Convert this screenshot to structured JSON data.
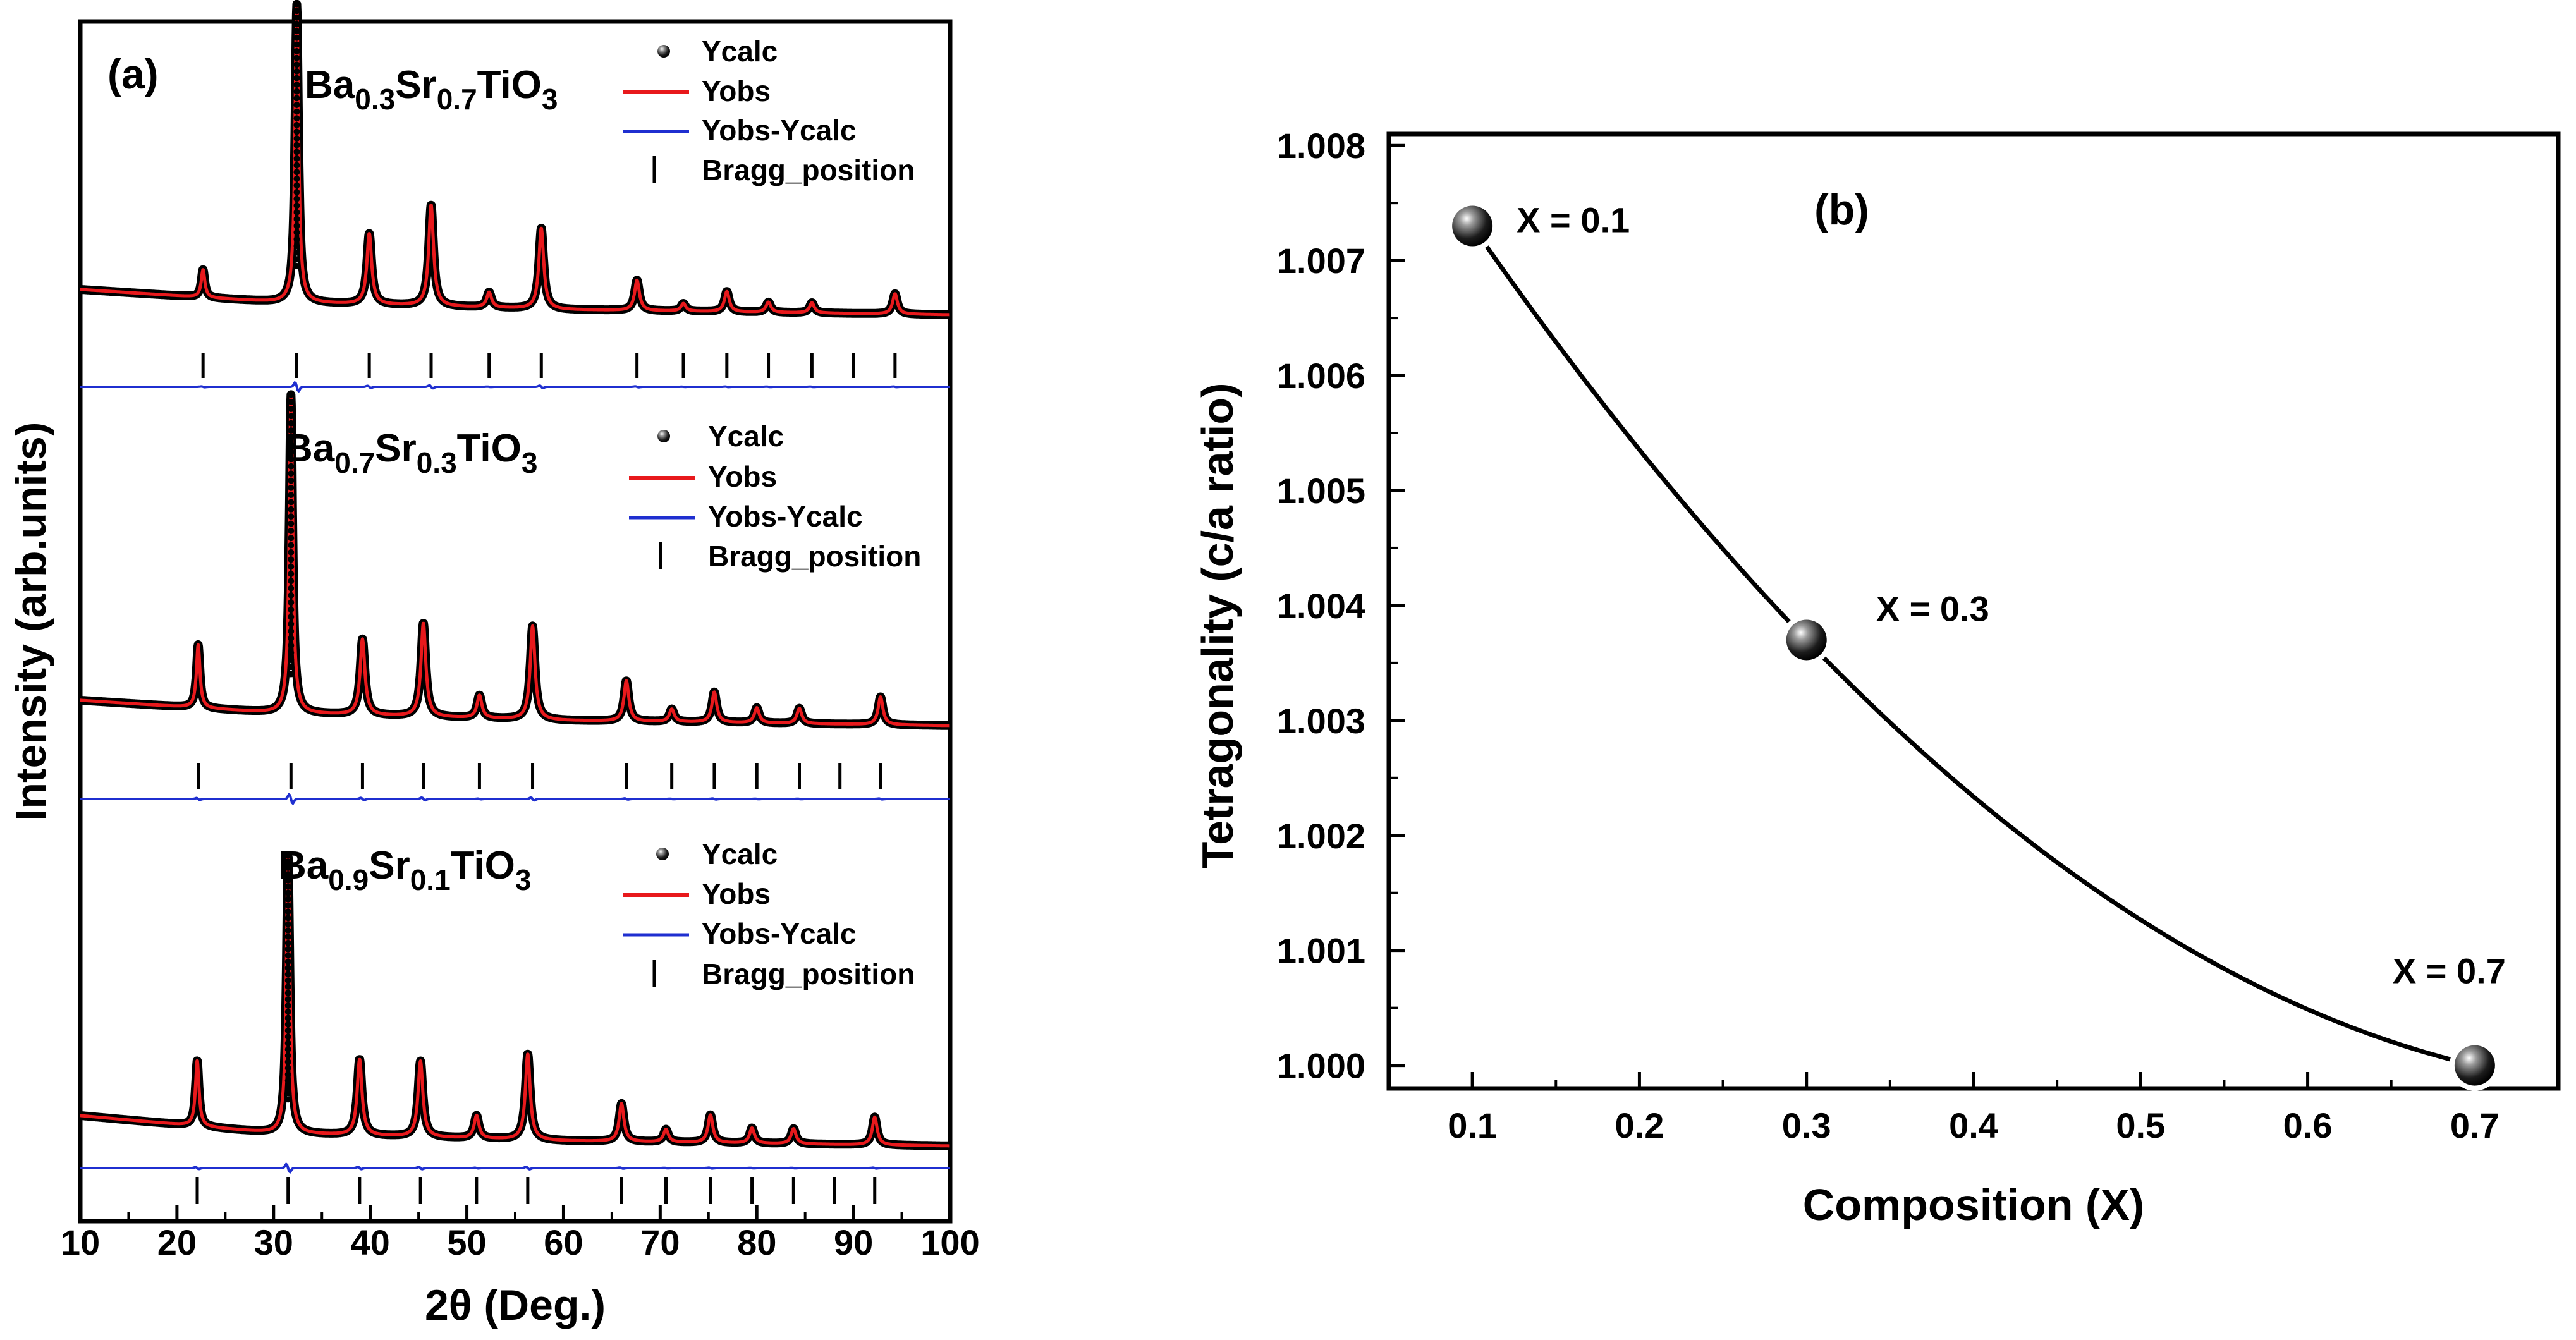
{
  "chart_data": [
    {
      "type": "line",
      "panel_label": "(a)",
      "xlabel": "2θ (Deg.)",
      "ylabel": "Intensity (arb.units)",
      "xlim": [
        10,
        100
      ],
      "xticks": [
        10,
        20,
        30,
        40,
        50,
        60,
        70,
        80,
        90,
        100
      ],
      "legend_labels": {
        "calc": "Ycalc",
        "obs": "Yobs",
        "diff": "Yobs-Ycalc",
        "bragg": "Bragg_position"
      },
      "colors": {
        "calc": "#000000",
        "obs": "#e8191c",
        "diff": "#1f2fd0",
        "bragg": "#000000"
      },
      "patterns": [
        {
          "name": "x=0.7",
          "formula": {
            "a": "Ba",
            "sa": "0.3",
            "b": "Sr",
            "sb": "0.7",
            "c": "TiO",
            "sc": "3"
          },
          "baseline": [
            [
              10,
              16
            ],
            [
              30,
              11
            ],
            [
              60,
              8
            ],
            [
              100,
              6
            ]
          ],
          "peaks": [
            [
              22.7,
              11
            ],
            [
              32.4,
              118
            ],
            [
              39.9,
              28
            ],
            [
              46.3,
              40
            ],
            [
              52.3,
              6
            ],
            [
              57.7,
              32
            ],
            [
              67.6,
              12
            ],
            [
              72.4,
              3
            ],
            [
              76.9,
              8
            ],
            [
              81.2,
              4
            ],
            [
              85.7,
              4
            ],
            [
              94.3,
              8
            ]
          ],
          "bragg": [
            22.7,
            32.4,
            39.9,
            46.3,
            52.3,
            57.7,
            67.6,
            72.4,
            76.9,
            81.2,
            85.7,
            90.0,
            94.3
          ]
        },
        {
          "name": "x=0.3",
          "formula": {
            "a": "Ba",
            "sa": "0.7",
            "b": "Sr",
            "sb": "0.3",
            "c": "TiO",
            "sc": "3"
          },
          "baseline": [
            [
              10,
              16
            ],
            [
              30,
              11
            ],
            [
              60,
              8
            ],
            [
              100,
              6
            ]
          ],
          "peaks": [
            [
              22.2,
              25
            ],
            [
              31.8,
              126
            ],
            [
              39.2,
              30
            ],
            [
              45.5,
              37
            ],
            [
              51.3,
              9
            ],
            [
              56.8,
              37
            ],
            [
              66.5,
              16
            ],
            [
              71.2,
              5
            ],
            [
              75.6,
              12
            ],
            [
              80.0,
              6
            ],
            [
              84.4,
              6
            ],
            [
              92.8,
              11
            ]
          ],
          "bragg": [
            22.2,
            31.8,
            39.2,
            45.5,
            51.3,
            56.8,
            66.5,
            71.2,
            75.6,
            80.0,
            84.4,
            88.6,
            92.8
          ]
        },
        {
          "name": "x=0.1",
          "formula": {
            "a": "Ba",
            "sa": "0.9",
            "b": "Sr",
            "sb": "0.1",
            "c": "TiO",
            "sc": "3"
          },
          "baseline": [
            [
              10,
              18
            ],
            [
              30,
              11
            ],
            [
              60,
              8
            ],
            [
              100,
              6
            ]
          ],
          "peaks": [
            [
              22.1,
              26
            ],
            [
              31.5,
              110
            ],
            [
              38.9,
              30
            ],
            [
              45.2,
              30
            ],
            [
              51.0,
              9
            ],
            [
              56.3,
              34
            ],
            [
              66.0,
              15
            ],
            [
              70.6,
              5
            ],
            [
              75.2,
              11
            ],
            [
              79.5,
              6
            ],
            [
              83.8,
              6
            ],
            [
              92.2,
              11
            ]
          ],
          "bragg": [
            22.1,
            31.5,
            38.9,
            45.2,
            51.0,
            56.3,
            66.0,
            70.6,
            75.2,
            79.5,
            83.8,
            88.0,
            92.2
          ]
        }
      ]
    },
    {
      "type": "line",
      "panel_label": "(b)",
      "xlabel": "Composition (X)",
      "ylabel": "Tetragonality (c/a ratio)",
      "xlim": [
        0.05,
        0.75
      ],
      "ylim": [
        0.9998,
        1.0081
      ],
      "xticks": [
        "0.1",
        "0.2",
        "0.3",
        "0.4",
        "0.5",
        "0.6",
        "0.7"
      ],
      "yticks": [
        "1.000",
        "1.001",
        "1.002",
        "1.003",
        "1.004",
        "1.005",
        "1.006",
        "1.007",
        "1.008"
      ],
      "x": [
        0.1,
        0.3,
        0.7
      ],
      "y": [
        1.0073,
        1.0037,
        1.0
      ],
      "point_labels": [
        "X = 0.1",
        "X = 0.3",
        "X = 0.7"
      ]
    }
  ]
}
